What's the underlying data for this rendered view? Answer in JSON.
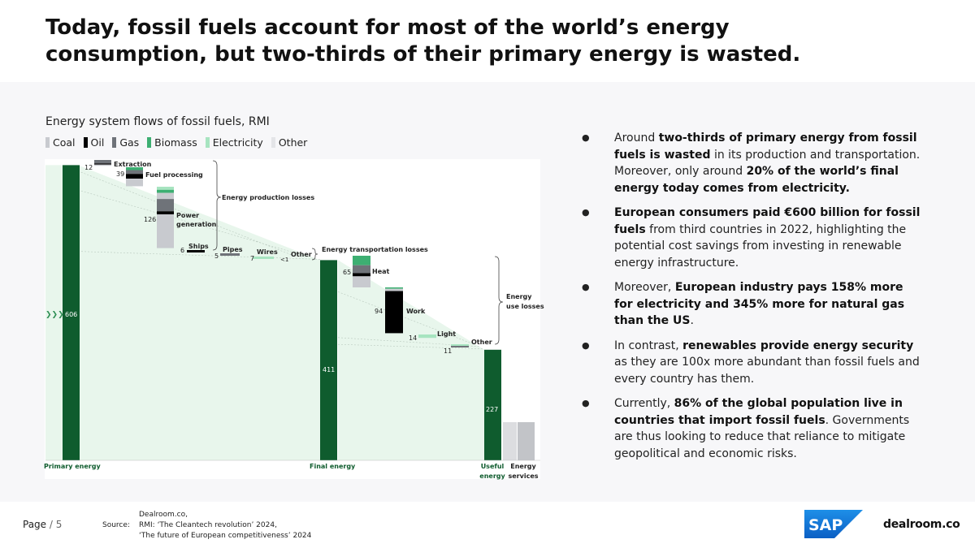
{
  "title": "Today, fossil fuels account for most of the world’s energy consumption, but two-thirds of their primary energy is wasted.",
  "colors": {
    "coal": "#c8cacf",
    "oil": "#000000",
    "gas": "#6f7379",
    "biomass": "#3daf72",
    "electricity": "#a7e4c0",
    "other": "#e4e5e8",
    "dark_green": "#0f5c2e",
    "flow_fill": "#e8f6ec"
  },
  "chart_data": {
    "type": "sankey-waterfall",
    "title": "Energy system flows of fossil fuels, RMI",
    "legend": [
      "Coal",
      "Oil",
      "Gas",
      "Biomass",
      "Electricity",
      "Other"
    ],
    "stages": [
      {
        "label": "Primary energy",
        "value": 606,
        "value_label": "606"
      },
      {
        "label": "Final energy",
        "value": 411,
        "value_label": "411"
      },
      {
        "label": "Useful energy",
        "value": 227,
        "value_label": "227"
      },
      {
        "label": "Energy services"
      }
    ],
    "production_losses": [
      {
        "label": "Extraction",
        "value": 12,
        "value_label": "12"
      },
      {
        "label": "Fuel processing",
        "value": 39,
        "value_label": "39"
      },
      {
        "label": "Power generation",
        "value": 126,
        "value_label": "126"
      }
    ],
    "transportation_losses": [
      {
        "label": "Ships",
        "value": 6,
        "value_label": "6"
      },
      {
        "label": "Pipes",
        "value": 5,
        "value_label": "5"
      },
      {
        "label": "Wires",
        "value": 7,
        "value_label": "7"
      },
      {
        "label": "Other",
        "value": 1,
        "value_label": "<1"
      }
    ],
    "use_losses": [
      {
        "label": "Heat",
        "value": 65,
        "value_label": "65"
      },
      {
        "label": "Work",
        "value": 94,
        "value_label": "94"
      },
      {
        "label": "Light",
        "value": 14,
        "value_label": "14"
      },
      {
        "label": "Other",
        "value": 11,
        "value_label": "11"
      }
    ],
    "group_labels": {
      "production": "Energy production losses",
      "transportation": "Energy transportation losses",
      "use": "Energy use losses"
    }
  },
  "bullets": [
    [
      {
        "t": "Around "
      },
      {
        "t": "two-thirds of primary energy from fossil fuels is wasted",
        "b": true
      },
      {
        "t": " in its production and transportation. Moreover, only around "
      },
      {
        "t": "20% of the world’s final energy today comes from electricity.",
        "b": true
      }
    ],
    [
      {
        "t": "European consumers paid €600 billion for fossil fuels",
        "b": true
      },
      {
        "t": " from third countries in 2022, highlighting the potential cost savings from investing in renewable energy infrastructure."
      }
    ],
    [
      {
        "t": "Moreover, "
      },
      {
        "t": "European industry pays 158% more for electricity and 345% more for natural gas than the US",
        "b": true
      },
      {
        "t": "."
      }
    ],
    [
      {
        "t": "In contrast, "
      },
      {
        "t": "renewables provide energy security",
        "b": true
      },
      {
        "t": " as they are 100x more abundant than fossil fuels and every country has them."
      }
    ],
    [
      {
        "t": "Currently, "
      },
      {
        "t": "86% of the global population live in countries that import fossil fuels",
        "b": true
      },
      {
        "t": ". Governments are thus looking to reduce that reliance to mitigate geopolitical and economic risks."
      }
    ]
  ],
  "bullet_symbol": "●",
  "footer": {
    "page_label": "Page",
    "page_sep": "/",
    "page_number": "5",
    "source_label": "Source:",
    "source_lines": [
      "Dealroom.co,",
      "RMI: ‘The Cleantech revolution’ 2024,",
      "‘The future of European competitiveness’ 2024"
    ],
    "sap_logo_text": "SAP",
    "dealroom_logo_text": "dealroom.co"
  }
}
